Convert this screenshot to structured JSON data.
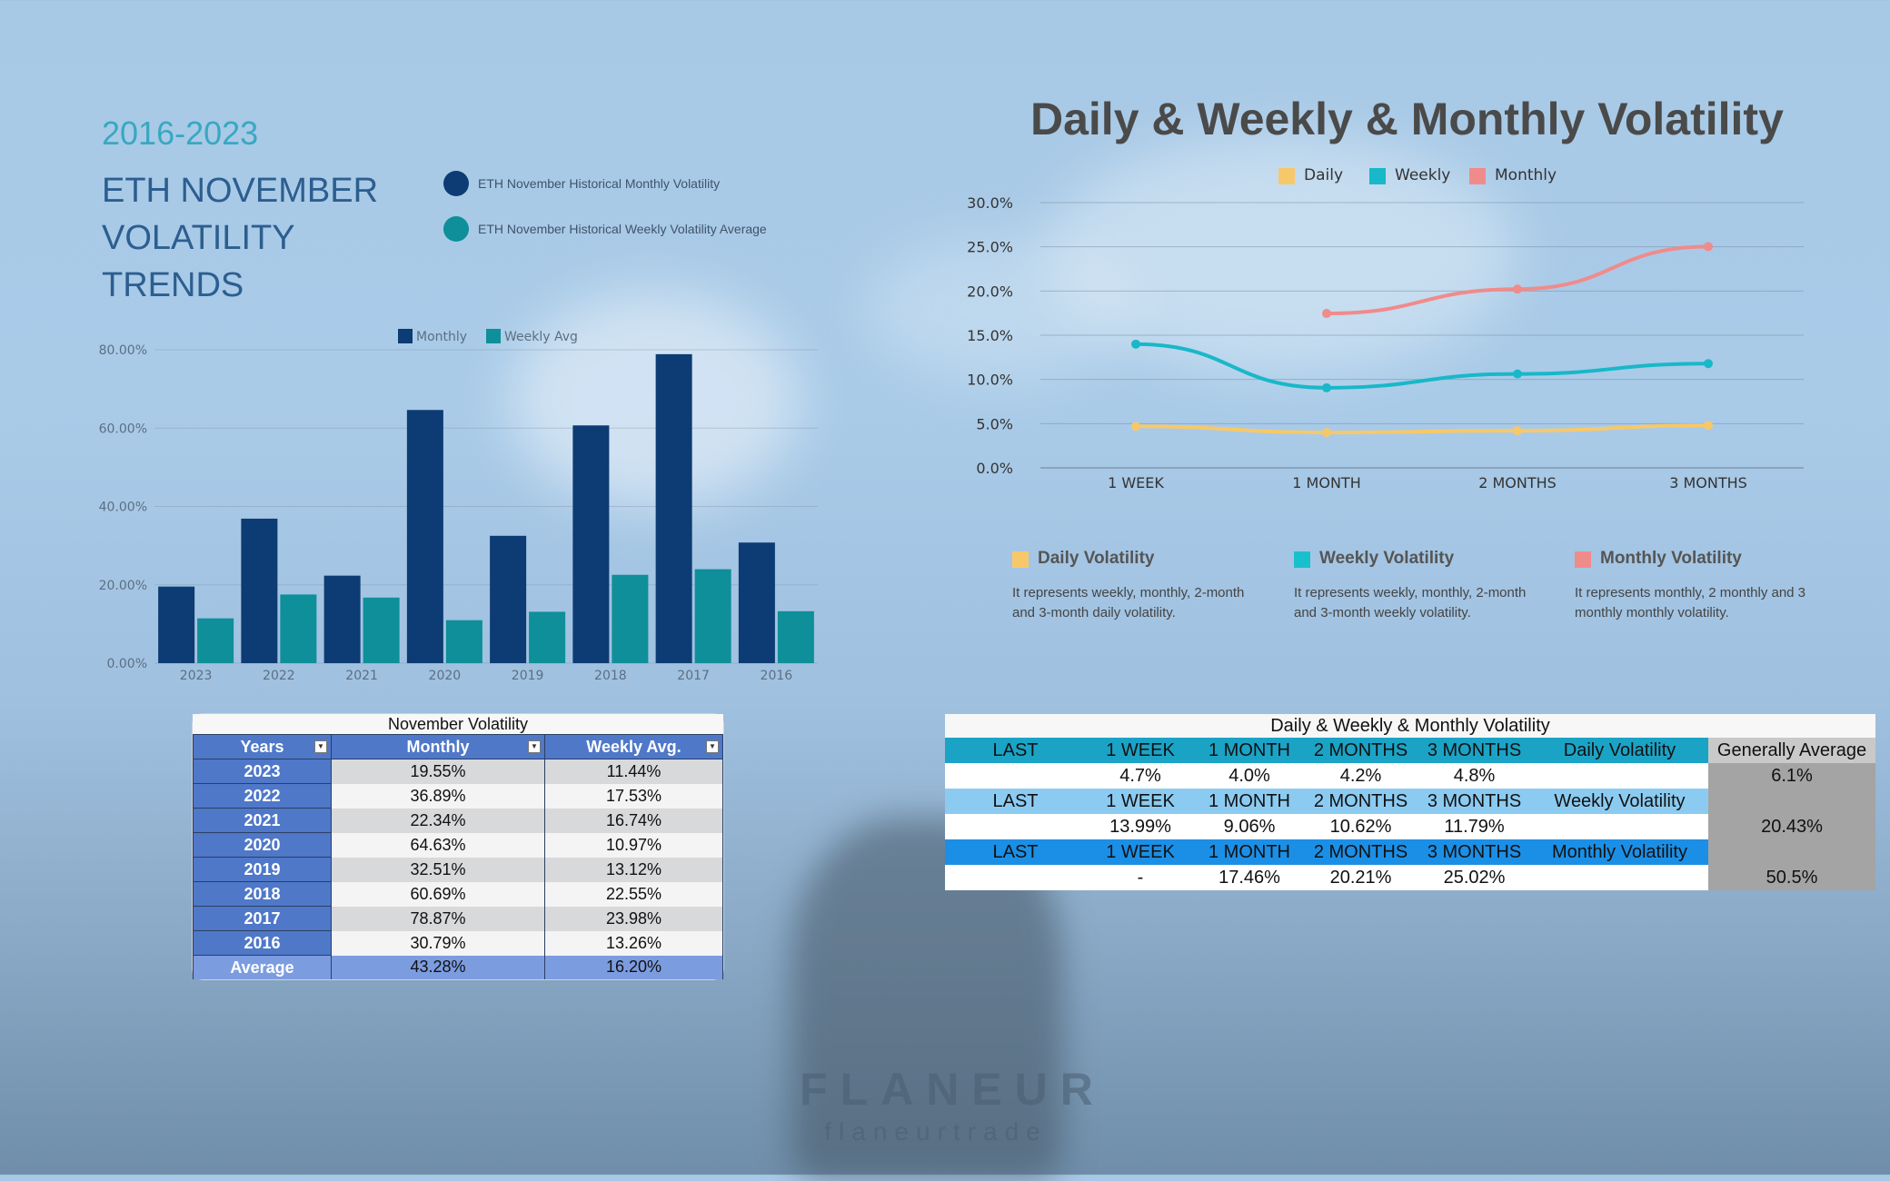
{
  "left": {
    "period": "2016-2023",
    "title_lines": [
      "ETH NOVEMBER",
      "VOLATILITY",
      "TRENDS"
    ],
    "legend": [
      {
        "label": "ETH November Historical Monthly Volatility",
        "color": "#0d3b73"
      },
      {
        "label": "ETH November Historical Weekly Volatility Average",
        "color": "#0e8f99"
      }
    ]
  },
  "right": {
    "title": "Daily & Weekly & Monthly Volatility",
    "descriptions": [
      {
        "title": "Daily Volatility",
        "text": "It represents weekly, monthly, 2-month and 3-month daily volatility.",
        "color": "#f7c86a"
      },
      {
        "title": "Weekly Volatility",
        "text": "It represents weekly, monthly, 2-month and 3-month weekly volatility.",
        "color": "#18c0cc"
      },
      {
        "title": "Monthly Volatility",
        "text": "It represents monthly, 2 monthly and 3 monthly monthly volatility.",
        "color": "#f08b8b"
      }
    ]
  },
  "chart_data": [
    {
      "type": "bar",
      "title": "",
      "categories": [
        "2023",
        "2022",
        "2021",
        "2020",
        "2019",
        "2018",
        "2017",
        "2016"
      ],
      "series": [
        {
          "name": "Monthly",
          "color": "#0d3b73",
          "values": [
            19.55,
            36.89,
            22.34,
            64.63,
            32.51,
            60.69,
            78.87,
            30.79
          ]
        },
        {
          "name": "Weekly Avg",
          "color": "#0e8f99",
          "values": [
            11.44,
            17.53,
            16.74,
            10.97,
            13.12,
            22.55,
            23.98,
            13.26
          ]
        }
      ],
      "yticks": [
        "0.00%",
        "20.00%",
        "40.00%",
        "60.00%",
        "80.00%"
      ],
      "ylim": [
        0,
        80
      ],
      "legend_position": "top"
    },
    {
      "type": "line",
      "title": "Daily & Weekly & Monthly Volatility",
      "categories": [
        "1 WEEK",
        "1 MONTH",
        "2 MONTHS",
        "3 MONTHS"
      ],
      "series": [
        {
          "name": "Daily",
          "color": "#f7c86a",
          "values": [
            4.7,
            4.0,
            4.2,
            4.8
          ]
        },
        {
          "name": "Weekly",
          "color": "#18b8c8",
          "values": [
            13.99,
            9.06,
            10.62,
            11.79
          ]
        },
        {
          "name": "Monthly",
          "color": "#f08b8b",
          "values": [
            null,
            17.46,
            20.21,
            25.02
          ]
        }
      ],
      "yticks": [
        "0.0%",
        "5.0%",
        "10.0%",
        "15.0%",
        "20.0%",
        "25.0%",
        "30.0%"
      ],
      "ylim": [
        0,
        30
      ],
      "legend_position": "top"
    }
  ],
  "nov_table": {
    "caption": "November Volatility",
    "headers": [
      "Years",
      "Monthly",
      "Weekly Avg."
    ],
    "rows": [
      [
        "2023",
        "19.55%",
        "11.44%"
      ],
      [
        "2022",
        "36.89%",
        "17.53%"
      ],
      [
        "2021",
        "22.34%",
        "16.74%"
      ],
      [
        "2020",
        "64.63%",
        "10.97%"
      ],
      [
        "2019",
        "32.51%",
        "13.12%"
      ],
      [
        "2018",
        "60.69%",
        "22.55%"
      ],
      [
        "2017",
        "78.87%",
        "23.98%"
      ],
      [
        "2016",
        "30.79%",
        "13.26%"
      ]
    ],
    "average": [
      "Average",
      "43.28%",
      "16.20%"
    ]
  },
  "dwm_table": {
    "caption": "Daily & Weekly & Monthly Volatility",
    "header_cols": [
      "LAST",
      "1 WEEK",
      "1 MONTH",
      "2 MONTHS",
      "3 MONTHS"
    ],
    "general_header": "Generally Average",
    "sections": [
      {
        "label": "Daily Volatility",
        "values": [
          "4.7%",
          "4.0%",
          "4.2%",
          "4.8%"
        ],
        "average": "6.1%"
      },
      {
        "label": "Weekly Volatility",
        "values": [
          "13.99%",
          "9.06%",
          "10.62%",
          "11.79%"
        ],
        "average": "20.43%"
      },
      {
        "label": "Monthly Volatility",
        "values": [
          "-",
          "17.46%",
          "20.21%",
          "25.02%"
        ],
        "average": "50.5%"
      }
    ]
  },
  "brand": {
    "name": "FLANEUR",
    "handle": "flaneurtrade"
  }
}
